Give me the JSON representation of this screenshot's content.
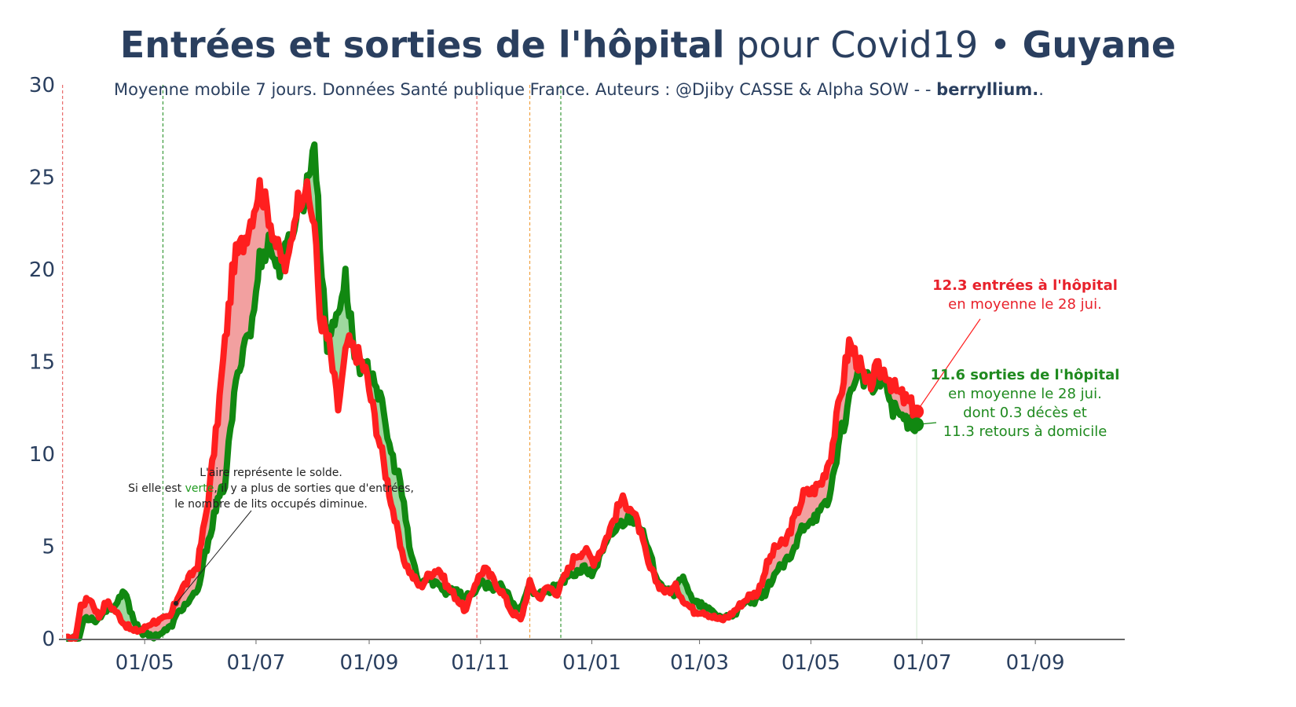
{
  "title": {
    "bold_part": "Entrées et sorties de l'hôpital",
    "normal_part": "pour Covid19",
    "separator": "•",
    "region": "Guyane"
  },
  "subtitle": {
    "text": "Moyenne mobile 7 jours. Données Santé publique France. Auteurs : @Djiby CASSE & Alpha SOW -  - ",
    "brand": "berryllium.",
    "suffix": "."
  },
  "annotations": {
    "entries": {
      "line1": "12.3 entrées à l'hôpital",
      "line2": "en moyenne le 28 jui."
    },
    "exits": {
      "line1": "11.6 sorties de l'hôpital",
      "line2": "en moyenne le 28 jui.",
      "line3": "dont 0.3 décès et",
      "line4": "11.3 retours à domicile"
    },
    "area_note": {
      "line1": "L'aire représente le solde.",
      "line2_prefix": "Si elle est ",
      "line2_green": "verte",
      "line2_suffix": ", il y a plus de sorties que d'entrées,",
      "line3": "le nombre de lits occupés diminue."
    }
  },
  "colors": {
    "entries": "#ff1f1f",
    "exits": "#118811",
    "fill_positive_entries": "#f2a0a0",
    "fill_positive_exits": "#9fd89f",
    "text": "#2a3f5f",
    "vline_red": "#e86a6a",
    "vline_green": "#3a9a3a",
    "vline_orange": "#f0a040"
  },
  "chart_data": {
    "type": "line",
    "title": "Entrées et sorties de l'hôpital pour Covid19 • Guyane",
    "x_start": "2020-03-19",
    "x_end": "2021-06-28",
    "xlim": [
      "2020-03-15",
      "2021-10-20"
    ],
    "ylim": [
      0,
      30
    ],
    "y_ticks": [
      0,
      5,
      10,
      15,
      20,
      25,
      30
    ],
    "x_ticks": [
      {
        "date": "2020-05-01",
        "label": "01/05"
      },
      {
        "date": "2020-07-01",
        "label": "01/07"
      },
      {
        "date": "2020-09-01",
        "label": "01/09"
      },
      {
        "date": "2020-11-01",
        "label": "01/11"
      },
      {
        "date": "2021-01-01",
        "label": "01/01"
      },
      {
        "date": "2021-03-01",
        "label": "01/03"
      },
      {
        "date": "2021-05-01",
        "label": "01/05"
      },
      {
        "date": "2021-07-01",
        "label": "01/07"
      },
      {
        "date": "2021-09-01",
        "label": "01/09"
      }
    ],
    "vertical_lines": [
      {
        "date": "2020-03-17",
        "color": "red"
      },
      {
        "date": "2020-05-11",
        "color": "green"
      },
      {
        "date": "2020-10-30",
        "color": "red"
      },
      {
        "date": "2020-11-28",
        "color": "orange"
      },
      {
        "date": "2020-12-15",
        "color": "green"
      }
    ],
    "series": [
      {
        "name": "entrées",
        "keypoints": [
          [
            "2020-03-19",
            0
          ],
          [
            "2020-03-24",
            0
          ],
          [
            "2020-03-27",
            1.8
          ],
          [
            "2020-04-01",
            2.2
          ],
          [
            "2020-04-06",
            1.2
          ],
          [
            "2020-04-10",
            2.0
          ],
          [
            "2020-04-15",
            1.5
          ],
          [
            "2020-04-20",
            0.8
          ],
          [
            "2020-04-25",
            0.4
          ],
          [
            "2020-04-30",
            0.5
          ],
          [
            "2020-05-05",
            0.9
          ],
          [
            "2020-05-10",
            1.0
          ],
          [
            "2020-05-15",
            1.2
          ],
          [
            "2020-05-20",
            2.5
          ],
          [
            "2020-05-25",
            3.2
          ],
          [
            "2020-05-30",
            4.0
          ],
          [
            "2020-06-04",
            7.0
          ],
          [
            "2020-06-09",
            11.0
          ],
          [
            "2020-06-14",
            16.0
          ],
          [
            "2020-06-19",
            20.5
          ],
          [
            "2020-06-24",
            21.5
          ],
          [
            "2020-06-29",
            23.0
          ],
          [
            "2020-07-03",
            24.5
          ],
          [
            "2020-07-08",
            23.0
          ],
          [
            "2020-07-13",
            21.0
          ],
          [
            "2020-07-18",
            20.0
          ],
          [
            "2020-07-23",
            23.5
          ],
          [
            "2020-07-28",
            24.5
          ],
          [
            "2020-08-02",
            22.5
          ],
          [
            "2020-08-05",
            17.5
          ],
          [
            "2020-08-10",
            16.0
          ],
          [
            "2020-08-15",
            12.5
          ],
          [
            "2020-08-20",
            16.0
          ],
          [
            "2020-08-25",
            15.5
          ],
          [
            "2020-08-30",
            14.5
          ],
          [
            "2020-09-04",
            12.0
          ],
          [
            "2020-09-09",
            9.5
          ],
          [
            "2020-09-14",
            7.0
          ],
          [
            "2020-09-19",
            4.5
          ],
          [
            "2020-09-24",
            3.5
          ],
          [
            "2020-09-29",
            2.8
          ],
          [
            "2020-10-04",
            3.5
          ],
          [
            "2020-10-09",
            3.8
          ],
          [
            "2020-10-14",
            2.8
          ],
          [
            "2020-10-19",
            2.2
          ],
          [
            "2020-10-24",
            1.5
          ],
          [
            "2020-10-29",
            3.0
          ],
          [
            "2020-11-03",
            3.8
          ],
          [
            "2020-11-08",
            3.2
          ],
          [
            "2020-11-13",
            2.5
          ],
          [
            "2020-11-18",
            1.5
          ],
          [
            "2020-11-23",
            1.0
          ],
          [
            "2020-11-28",
            3.0
          ],
          [
            "2020-12-03",
            2.2
          ],
          [
            "2020-12-08",
            2.8
          ],
          [
            "2020-12-13",
            2.5
          ],
          [
            "2020-12-18",
            3.5
          ],
          [
            "2020-12-23",
            4.5
          ],
          [
            "2020-12-28",
            4.8
          ],
          [
            "2021-01-02",
            4.2
          ],
          [
            "2021-01-07",
            5.0
          ],
          [
            "2021-01-12",
            6.2
          ],
          [
            "2021-01-17",
            7.5
          ],
          [
            "2021-01-22",
            7.2
          ],
          [
            "2021-01-27",
            6.0
          ],
          [
            "2021-02-01",
            4.0
          ],
          [
            "2021-02-06",
            3.0
          ],
          [
            "2021-02-11",
            2.5
          ],
          [
            "2021-02-16",
            2.8
          ],
          [
            "2021-02-21",
            2.0
          ],
          [
            "2021-02-26",
            1.5
          ],
          [
            "2021-03-03",
            1.5
          ],
          [
            "2021-03-08",
            1.2
          ],
          [
            "2021-03-13",
            1.0
          ],
          [
            "2021-03-18",
            1.3
          ],
          [
            "2021-03-23",
            1.8
          ],
          [
            "2021-03-28",
            2.3
          ],
          [
            "2021-04-02",
            2.5
          ],
          [
            "2021-04-07",
            4.0
          ],
          [
            "2021-04-12",
            5.0
          ],
          [
            "2021-04-17",
            5.2
          ],
          [
            "2021-04-22",
            6.5
          ],
          [
            "2021-04-27",
            7.8
          ],
          [
            "2021-05-02",
            8.0
          ],
          [
            "2021-05-07",
            8.5
          ],
          [
            "2021-05-12",
            10.0
          ],
          [
            "2021-05-17",
            13.0
          ],
          [
            "2021-05-22",
            16.0
          ],
          [
            "2021-05-27",
            15.0
          ],
          [
            "2021-06-01",
            13.5
          ],
          [
            "2021-06-06",
            14.5
          ],
          [
            "2021-06-11",
            14.5
          ],
          [
            "2021-06-16",
            13.5
          ],
          [
            "2021-06-21",
            13.0
          ],
          [
            "2021-06-28",
            12.3
          ]
        ]
      },
      {
        "name": "sorties",
        "keypoints": [
          [
            "2020-03-19",
            0
          ],
          [
            "2020-03-26",
            0
          ],
          [
            "2020-03-29",
            1.2
          ],
          [
            "2020-04-05",
            1.0
          ],
          [
            "2020-04-10",
            1.6
          ],
          [
            "2020-04-15",
            1.8
          ],
          [
            "2020-04-20",
            2.5
          ],
          [
            "2020-04-25",
            1.0
          ],
          [
            "2020-04-30",
            0.3
          ],
          [
            "2020-05-05",
            0.1
          ],
          [
            "2020-05-10",
            0.3
          ],
          [
            "2020-05-15",
            0.6
          ],
          [
            "2020-05-20",
            1.5
          ],
          [
            "2020-05-25",
            2.0
          ],
          [
            "2020-05-30",
            2.5
          ],
          [
            "2020-06-04",
            5.0
          ],
          [
            "2020-06-09",
            7.0
          ],
          [
            "2020-06-14",
            8.5
          ],
          [
            "2020-06-19",
            13.0
          ],
          [
            "2020-06-24",
            16.0
          ],
          [
            "2020-06-29",
            17.0
          ],
          [
            "2020-07-03",
            20.5
          ],
          [
            "2020-07-08",
            21.5
          ],
          [
            "2020-07-13",
            20.0
          ],
          [
            "2020-07-18",
            21.0
          ],
          [
            "2020-07-23",
            23.0
          ],
          [
            "2020-07-28",
            24.0
          ],
          [
            "2020-08-02",
            27.0
          ],
          [
            "2020-08-05",
            21.5
          ],
          [
            "2020-08-09",
            16.0
          ],
          [
            "2020-08-14",
            17.5
          ],
          [
            "2020-08-19",
            19.5
          ],
          [
            "2020-08-24",
            15.5
          ],
          [
            "2020-08-29",
            14.5
          ],
          [
            "2020-09-03",
            14.5
          ],
          [
            "2020-09-08",
            12.5
          ],
          [
            "2020-09-13",
            10.0
          ],
          [
            "2020-09-18",
            8.5
          ],
          [
            "2020-09-23",
            5.0
          ],
          [
            "2020-09-28",
            3.0
          ],
          [
            "2020-10-03",
            3.2
          ],
          [
            "2020-10-08",
            3.0
          ],
          [
            "2020-10-13",
            2.5
          ],
          [
            "2020-10-18",
            2.8
          ],
          [
            "2020-10-23",
            2.2
          ],
          [
            "2020-10-28",
            2.5
          ],
          [
            "2020-11-02",
            3.0
          ],
          [
            "2020-11-07",
            2.8
          ],
          [
            "2020-11-12",
            2.8
          ],
          [
            "2020-11-17",
            2.2
          ],
          [
            "2020-11-22",
            1.5
          ],
          [
            "2020-11-27",
            2.8
          ],
          [
            "2020-12-02",
            2.5
          ],
          [
            "2020-12-07",
            2.5
          ],
          [
            "2020-12-12",
            2.8
          ],
          [
            "2020-12-17",
            3.2
          ],
          [
            "2020-12-22",
            3.5
          ],
          [
            "2020-12-27",
            3.8
          ],
          [
            "2021-01-01",
            3.5
          ],
          [
            "2021-01-06",
            4.5
          ],
          [
            "2021-01-11",
            5.5
          ],
          [
            "2021-01-16",
            6.2
          ],
          [
            "2021-01-21",
            6.5
          ],
          [
            "2021-01-26",
            6.5
          ],
          [
            "2021-01-31",
            5.0
          ],
          [
            "2021-02-05",
            3.5
          ],
          [
            "2021-02-10",
            2.8
          ],
          [
            "2021-02-15",
            2.5
          ],
          [
            "2021-02-20",
            3.5
          ],
          [
            "2021-02-25",
            2.0
          ],
          [
            "2021-03-02",
            1.8
          ],
          [
            "2021-03-07",
            1.5
          ],
          [
            "2021-03-12",
            1.2
          ],
          [
            "2021-03-17",
            1.2
          ],
          [
            "2021-03-22",
            1.5
          ],
          [
            "2021-03-27",
            2.0
          ],
          [
            "2021-04-01",
            2.0
          ],
          [
            "2021-04-06",
            2.5
          ],
          [
            "2021-04-11",
            3.5
          ],
          [
            "2021-04-16",
            4.0
          ],
          [
            "2021-04-21",
            4.5
          ],
          [
            "2021-04-26",
            6.0
          ],
          [
            "2021-05-01",
            6.5
          ],
          [
            "2021-05-06",
            6.8
          ],
          [
            "2021-05-11",
            7.5
          ],
          [
            "2021-05-16",
            10.5
          ],
          [
            "2021-05-21",
            12.5
          ],
          [
            "2021-05-26",
            14.5
          ],
          [
            "2021-05-31",
            14.0
          ],
          [
            "2021-06-05",
            13.5
          ],
          [
            "2021-06-10",
            14.0
          ],
          [
            "2021-06-15",
            12.5
          ],
          [
            "2021-06-20",
            12.0
          ],
          [
            "2021-06-28",
            11.6
          ]
        ]
      }
    ]
  }
}
